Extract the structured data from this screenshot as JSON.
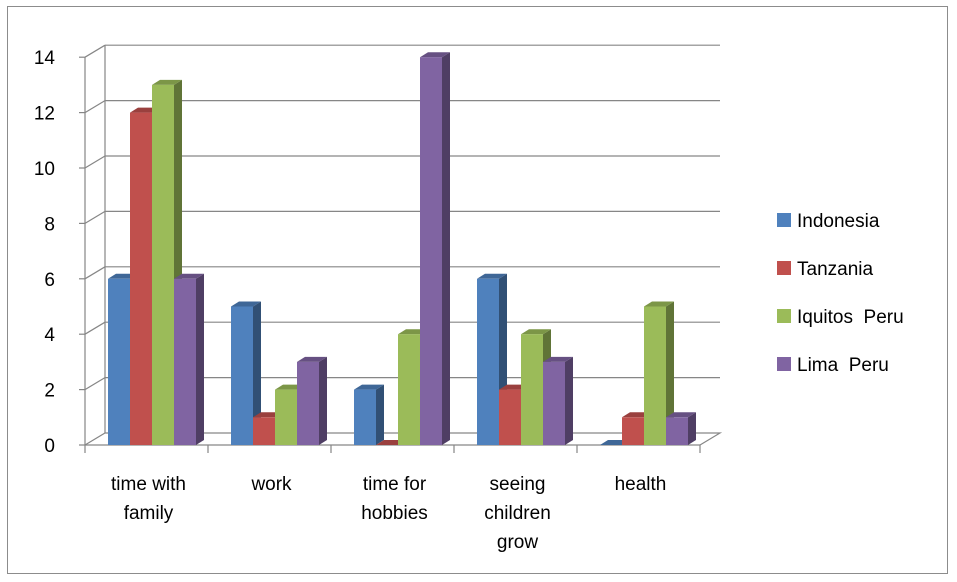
{
  "chart_data": {
    "type": "bar",
    "categories": [
      [
        "time with",
        "family"
      ],
      [
        "work"
      ],
      [
        "time for",
        "hobbies"
      ],
      [
        "seeing",
        "children",
        "grow"
      ],
      [
        "health"
      ]
    ],
    "series": [
      {
        "name": "Indonesia",
        "color": "#4f81bd",
        "values": [
          6,
          5,
          2,
          6,
          0
        ]
      },
      {
        "name": "Tanzania",
        "color": "#c0504d",
        "values": [
          12,
          1,
          0,
          2,
          1
        ]
      },
      {
        "name": "Iquitos  Peru",
        "color": "#9bbb59",
        "values": [
          13,
          2,
          4,
          4,
          5
        ]
      },
      {
        "name": "Lima  Peru",
        "color": "#8064a2",
        "values": [
          6,
          3,
          14,
          3,
          1
        ]
      }
    ],
    "yticks": [
      "0",
      "2",
      "4",
      "6",
      "8",
      "10",
      "12",
      "14"
    ],
    "ylim": [
      0,
      14
    ],
    "grid": true,
    "legend_position": "right",
    "style": "3d-clustered-column"
  }
}
